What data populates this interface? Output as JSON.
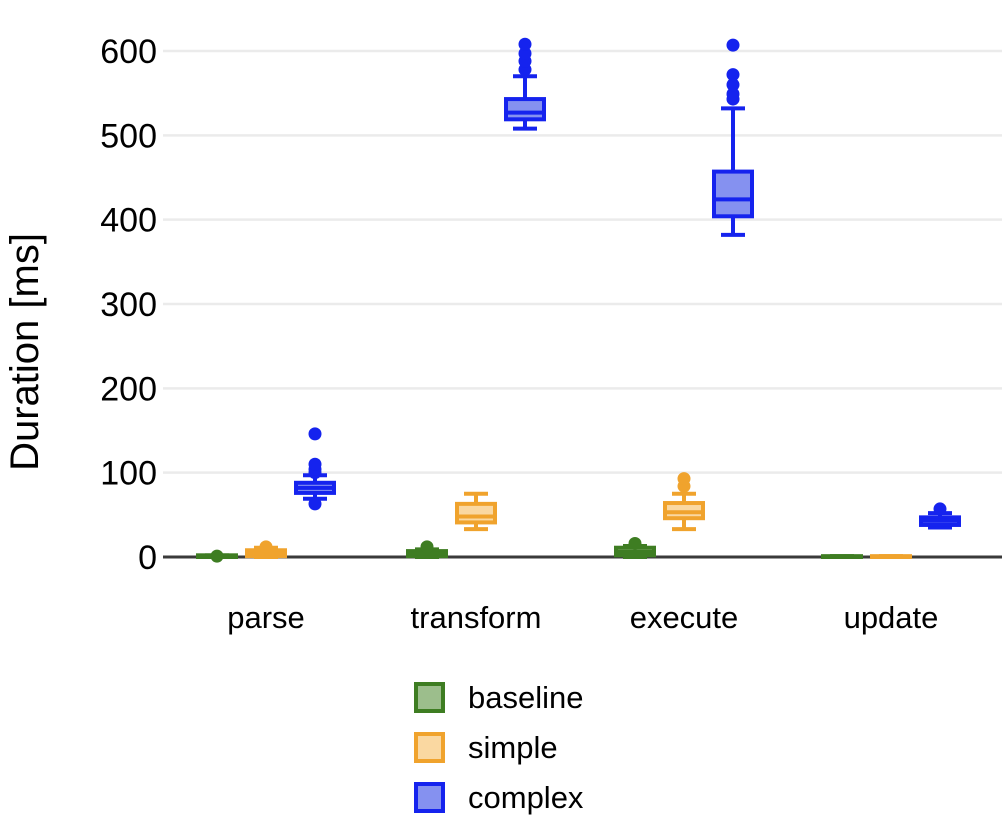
{
  "chart_data": {
    "type": "boxplot",
    "title": "",
    "ylabel": "Duration [ms]",
    "unit": "ms",
    "categories": [
      "parse",
      "transform",
      "execute",
      "update"
    ],
    "series": [
      "baseline",
      "simple",
      "complex"
    ],
    "yticks": [
      0,
      100,
      200,
      300,
      400,
      500,
      600
    ],
    "ylim": [
      0,
      620
    ],
    "grid": "horizontal-light",
    "legend_position": "bottom-center",
    "colors": {
      "baseline": {
        "stroke": "#3e7d22",
        "fill": "#9cbe8c"
      },
      "simple": {
        "stroke": "#f0a32d",
        "fill": "#fad8a1"
      },
      "complex": {
        "stroke": "#1523ee",
        "fill": "#8591f0"
      },
      "grid": "#ebebeb",
      "axis_line": "#3a3a3a",
      "text": "#000000",
      "background": "#ffffff"
    },
    "boxes": [
      {
        "category": "parse",
        "series": "baseline",
        "whislo": 0,
        "q1": 0,
        "med": 1,
        "q3": 2,
        "whishi": 2,
        "outliers": [
          1
        ]
      },
      {
        "category": "parse",
        "series": "simple",
        "whislo": 0,
        "q1": 1,
        "med": 4,
        "q3": 8,
        "whishi": 11,
        "outliers": [
          12
        ]
      },
      {
        "category": "parse",
        "series": "complex",
        "whislo": 69,
        "q1": 76,
        "med": 82,
        "q3": 88,
        "whishi": 97,
        "outliers": [
          63,
          100,
          104,
          110,
          146
        ]
      },
      {
        "category": "transform",
        "series": "baseline",
        "whislo": 0,
        "q1": 1,
        "med": 4,
        "q3": 7,
        "whishi": 9,
        "outliers": [
          12
        ]
      },
      {
        "category": "transform",
        "series": "simple",
        "whislo": 33,
        "q1": 41,
        "med": 48,
        "q3": 63,
        "whishi": 75,
        "outliers": []
      },
      {
        "category": "transform",
        "series": "complex",
        "whislo": 508,
        "q1": 519,
        "med": 527,
        "q3": 543,
        "whishi": 570,
        "outliers": [
          578,
          588,
          597,
          608
        ]
      },
      {
        "category": "execute",
        "series": "baseline",
        "whislo": 0,
        "q1": 2,
        "med": 6,
        "q3": 11,
        "whishi": 13,
        "outliers": [
          16
        ]
      },
      {
        "category": "execute",
        "series": "simple",
        "whislo": 33,
        "q1": 46,
        "med": 53,
        "q3": 64,
        "whishi": 75,
        "outliers": [
          84,
          93
        ]
      },
      {
        "category": "execute",
        "series": "complex",
        "whislo": 382,
        "q1": 404,
        "med": 424,
        "q3": 457,
        "whishi": 532,
        "outliers": [
          543,
          549,
          560,
          572,
          607
        ]
      },
      {
        "category": "update",
        "series": "baseline",
        "whislo": 0,
        "q1": 0,
        "med": 0.5,
        "q3": 1,
        "whishi": 1,
        "outliers": []
      },
      {
        "category": "update",
        "series": "simple",
        "whislo": 0,
        "q1": 0,
        "med": 0.5,
        "q3": 1,
        "whishi": 1,
        "outliers": []
      },
      {
        "category": "update",
        "series": "complex",
        "whislo": 35,
        "q1": 38,
        "med": 43,
        "q3": 47,
        "whishi": 52,
        "outliers": [
          57
        ]
      }
    ]
  }
}
